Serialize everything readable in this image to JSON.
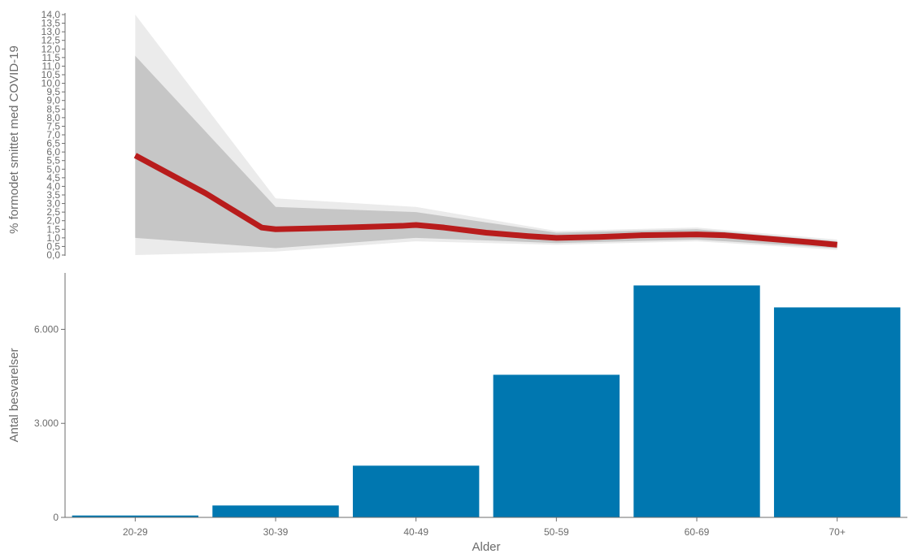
{
  "chart_data": [
    {
      "type": "line",
      "ylabel": "% formodet smittet med COVID-19",
      "ylim": [
        0,
        14
      ],
      "y_ticks": [
        "0,0",
        "0,5",
        "1,0",
        "1,5",
        "2,0",
        "2,5",
        "3,0",
        "3,5",
        "4,0",
        "4,5",
        "5,0",
        "5,5",
        "6,0",
        "6,5",
        "7,0",
        "7,5",
        "8,0",
        "8,5",
        "9,0",
        "9,5",
        "10,0",
        "10,5",
        "11,0",
        "11,5",
        "12,0",
        "12,5",
        "13,0",
        "13,5",
        "14,0"
      ],
      "grid": false,
      "x": [
        25,
        35,
        45,
        55,
        65,
        75
      ],
      "series": [
        {
          "values": [
            5.8,
            1.5,
            1.7,
            1.0,
            1.2,
            0.6
          ],
          "line_color": "#b81c1c"
        }
      ],
      "bands": [
        {
          "lower": [
            1.0,
            0.4,
            1.0,
            0.7,
            0.9,
            0.4
          ],
          "upper": [
            11.6,
            2.8,
            2.5,
            1.3,
            1.5,
            0.8
          ],
          "color": "#c6c6c6"
        },
        {
          "lower": [
            0.0,
            0.2,
            0.8,
            0.6,
            0.8,
            0.3
          ],
          "upper": [
            14.0,
            3.3,
            2.8,
            1.4,
            1.6,
            0.9
          ],
          "color": "#ebebeb"
        }
      ],
      "smooth_points": [
        [
          25.0,
          5.8
        ],
        [
          27.5,
          4.7
        ],
        [
          30.0,
          3.6
        ],
        [
          32.0,
          2.6
        ],
        [
          34.0,
          1.6
        ],
        [
          35.0,
          1.5
        ],
        [
          40.0,
          1.6
        ],
        [
          44.0,
          1.7
        ],
        [
          45.0,
          1.75
        ],
        [
          47.0,
          1.6
        ],
        [
          50.0,
          1.3
        ],
        [
          53.0,
          1.1
        ],
        [
          55.0,
          1.0
        ],
        [
          58.0,
          1.05
        ],
        [
          61.0,
          1.15
        ],
        [
          65.0,
          1.2
        ],
        [
          67.0,
          1.15
        ],
        [
          70.0,
          0.95
        ],
        [
          73.0,
          0.75
        ],
        [
          75.0,
          0.6
        ]
      ]
    },
    {
      "type": "bar",
      "categories": [
        "20-29",
        "30-39",
        "40-49",
        "50-59",
        "60-69",
        "70+"
      ],
      "values": [
        60,
        380,
        1650,
        4550,
        7400,
        6700
      ],
      "xlabel": "Alder",
      "ylabel": "Antal besvarelser",
      "ylim": [
        0,
        7800
      ],
      "y_ticks": [
        0,
        3000,
        6000
      ],
      "y_tick_labels": [
        "0",
        "3.000",
        "6.000"
      ],
      "bar_color": "#0077b0",
      "grid": false
    }
  ]
}
